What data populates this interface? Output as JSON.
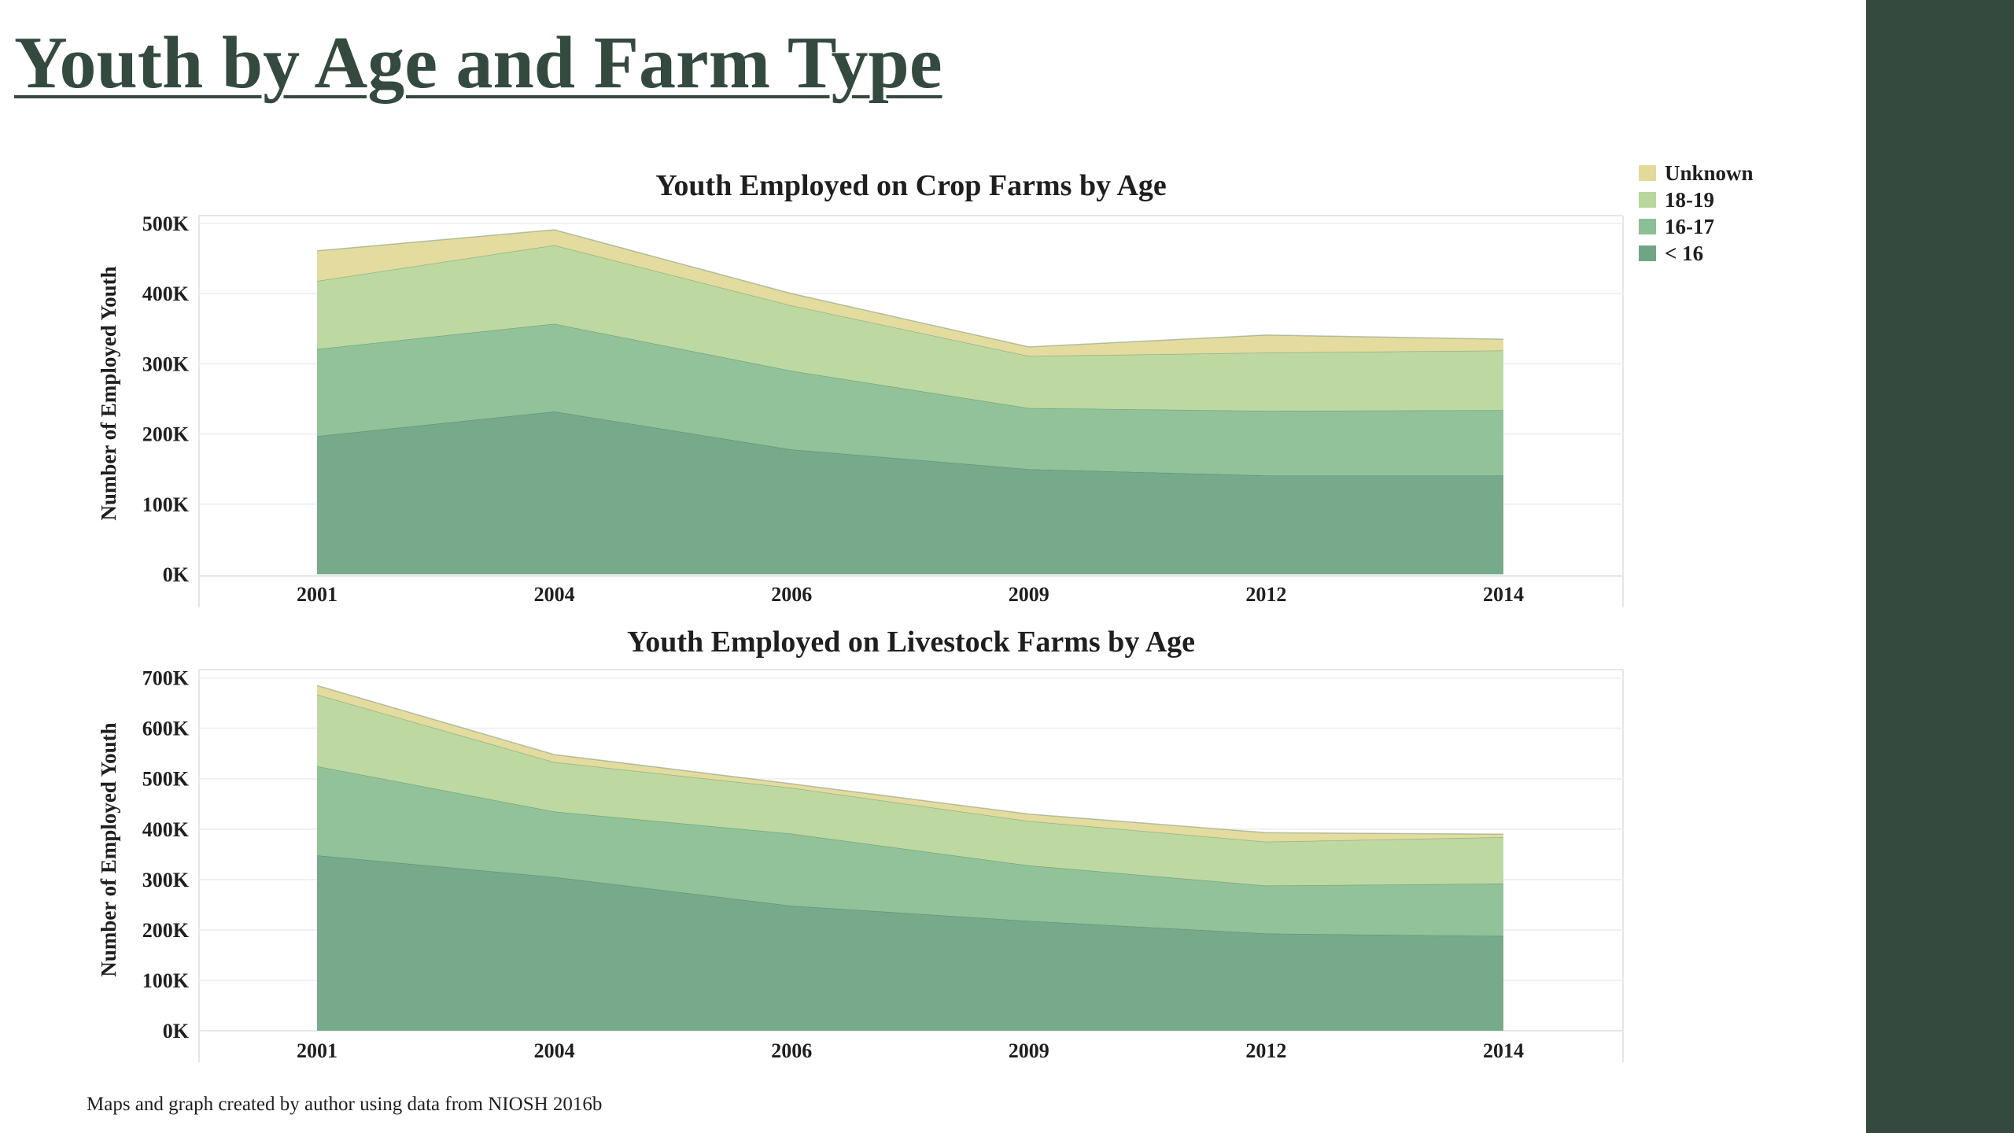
{
  "page": {
    "title": "Youth by Age and Farm Type",
    "source_note": "Maps and graph created by author using data from NIOSH 2016b"
  },
  "colors": {
    "under16": "#6fa584",
    "age16_17": "#8cbf93",
    "age18_19": "#b9d79c",
    "unknown": "#e3d99a",
    "right_bar": "#344a3e",
    "title": "#344a3e"
  },
  "legend": [
    {
      "label": "Unknown",
      "color": "#e3d99a"
    },
    {
      "label": "18-19",
      "color": "#b9d79c"
    },
    {
      "label": "16-17",
      "color": "#8cbf93"
    },
    {
      "label": "< 16",
      "color": "#6fa584"
    }
  ],
  "chart_data": [
    {
      "type": "area",
      "stacked": true,
      "title": "Youth Employed on Crop Farms by Age",
      "xlabel": "",
      "ylabel": "Number of Employed Youth",
      "x": [
        "2001",
        "2004",
        "2006",
        "2009",
        "2012",
        "2014"
      ],
      "ylim": [
        0,
        510000
      ],
      "yticks": [
        0,
        100000,
        200000,
        300000,
        400000,
        500000
      ],
      "ytick_labels": [
        "0K",
        "100K",
        "200K",
        "300K",
        "400K",
        "500K"
      ],
      "grid": true,
      "legend_position": "top-right",
      "series": [
        {
          "name": "< 16",
          "values": [
            197000,
            232000,
            178000,
            150000,
            141000,
            141000
          ]
        },
        {
          "name": "16-17",
          "values": [
            124000,
            125000,
            112000,
            87000,
            92000,
            93000
          ]
        },
        {
          "name": "18-19",
          "values": [
            97000,
            112000,
            93000,
            74000,
            83000,
            85000
          ]
        },
        {
          "name": "Unknown",
          "values": [
            43000,
            22000,
            17000,
            13000,
            25000,
            16000
          ]
        }
      ]
    },
    {
      "type": "area",
      "stacked": true,
      "title": "Youth Employed on Livestock Farms by Age",
      "xlabel": "",
      "ylabel": "Number of Employed Youth",
      "x": [
        "2001",
        "2004",
        "2006",
        "2009",
        "2012",
        "2014"
      ],
      "ylim": [
        0,
        715000
      ],
      "yticks": [
        0,
        100000,
        200000,
        300000,
        400000,
        500000,
        600000,
        700000
      ],
      "ytick_labels": [
        "0K",
        "100K",
        "200K",
        "300K",
        "400K",
        "500K",
        "600K",
        "700K"
      ],
      "grid": true,
      "legend_position": "top-right",
      "series": [
        {
          "name": "< 16",
          "values": [
            348000,
            305000,
            248000,
            218000,
            193000,
            188000
          ]
        },
        {
          "name": "16-17",
          "values": [
            177000,
            130000,
            143000,
            110000,
            95000,
            104000
          ]
        },
        {
          "name": "18-19",
          "values": [
            142000,
            98000,
            91000,
            88000,
            87000,
            92000
          ]
        },
        {
          "name": "Unknown",
          "values": [
            18000,
            15000,
            8000,
            14000,
            18000,
            6000
          ]
        }
      ]
    }
  ]
}
